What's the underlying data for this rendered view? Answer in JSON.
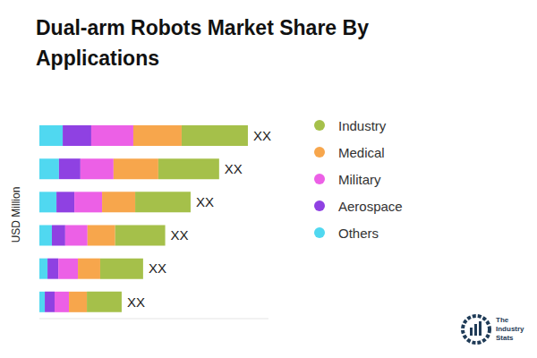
{
  "chart_data": {
    "type": "bar",
    "title": "Dual-arm Robots Market Share By Applications",
    "y_label": "USD Million",
    "orientation": "horizontal",
    "stacked": true,
    "tick_labels": false,
    "categories": [
      null,
      null,
      null,
      null,
      null,
      null
    ],
    "series": [
      {
        "name": "Industry",
        "color": "#a5c04a",
        "values": [
          31.8,
          29.2,
          26.6,
          24.0,
          20.6,
          16.7
        ]
      },
      {
        "name": "Medical",
        "color": "#f7a64c",
        "values": [
          23.2,
          21.5,
          15.9,
          13.3,
          10.7,
          8.6
        ]
      },
      {
        "name": "Military",
        "color": "#ec60e6",
        "values": [
          20.2,
          15.9,
          13.3,
          10.7,
          9.4,
          6.9
        ]
      },
      {
        "name": "Aerospace",
        "color": "#8f41e2",
        "values": [
          13.7,
          10.3,
          8.6,
          6.4,
          5.2,
          4.7
        ]
      },
      {
        "name": "Others",
        "color": "#50d8f0",
        "values": [
          11.2,
          9.4,
          8.2,
          6.0,
          3.9,
          2.6
        ]
      }
    ],
    "annotations": [
      "XX",
      "XX",
      "XX",
      "XX",
      "XX",
      "XX"
    ],
    "xlim": [
      0,
      110
    ],
    "xticks": [],
    "legend": "right",
    "watermark": "The Industry Stats"
  }
}
